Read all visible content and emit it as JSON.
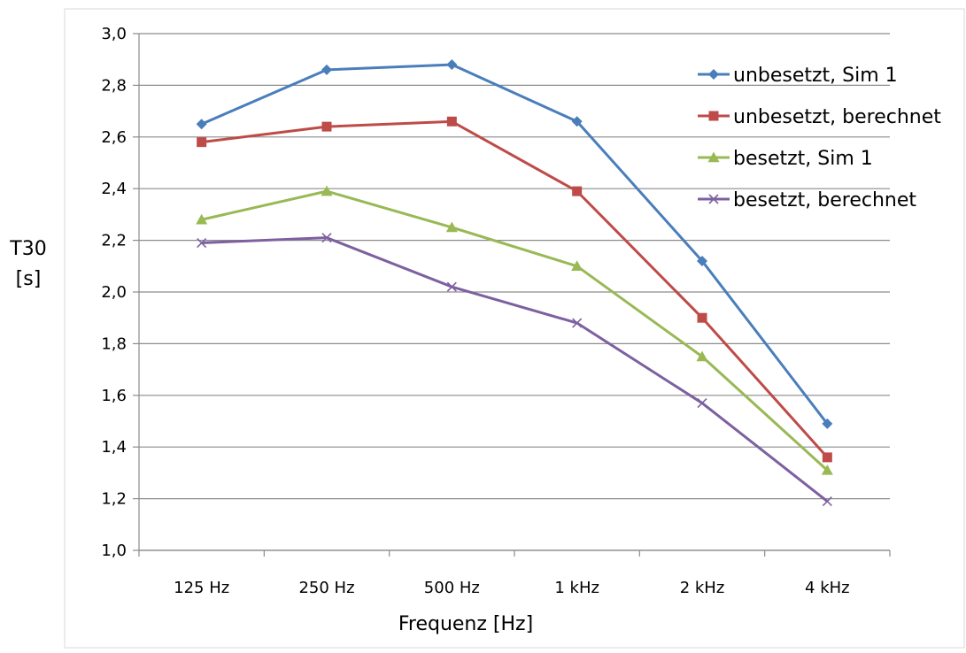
{
  "chart_data": {
    "type": "line",
    "title": "",
    "xlabel": "Frequenz [Hz]",
    "ylabel_line1": "T30",
    "ylabel_line2": "[s]",
    "categories": [
      "125 Hz",
      "250 Hz",
      "500 Hz",
      "1 kHz",
      "2 kHz",
      "4 kHz"
    ],
    "ylim": [
      1.0,
      3.0
    ],
    "yticks": [
      "1,0",
      "1,2",
      "1,4",
      "1,6",
      "1,8",
      "2,0",
      "2,2",
      "2,4",
      "2,6",
      "2,8",
      "3,0"
    ],
    "grid": true,
    "legend_position": "top-right",
    "series": [
      {
        "name": "unbesetzt, Sim 1",
        "color": "#4A7EBB",
        "marker": "diamond",
        "values": [
          2.65,
          2.86,
          2.88,
          2.66,
          2.12,
          1.49
        ]
      },
      {
        "name": "unbesetzt, berechnet",
        "color": "#BE4B48",
        "marker": "square",
        "values": [
          2.58,
          2.64,
          2.66,
          2.39,
          1.9,
          1.36
        ]
      },
      {
        "name": "besetzt, Sim 1",
        "color": "#98B954",
        "marker": "triangle",
        "values": [
          2.28,
          2.39,
          2.25,
          2.1,
          1.75,
          1.31
        ]
      },
      {
        "name": "besetzt, berechnet",
        "color": "#7D60A0",
        "marker": "x",
        "values": [
          2.19,
          2.21,
          2.02,
          1.88,
          1.57,
          1.19
        ]
      }
    ]
  }
}
